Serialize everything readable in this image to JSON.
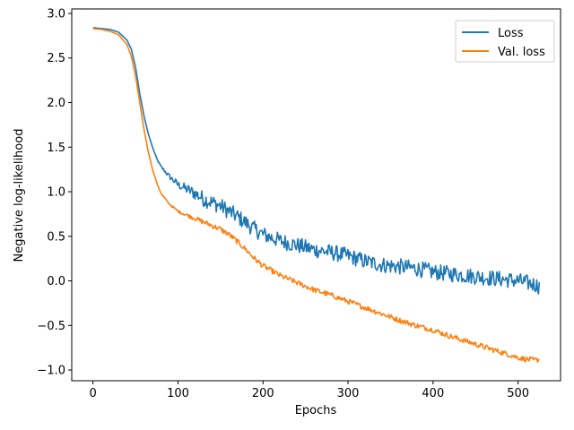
{
  "chart_data": {
    "type": "line",
    "xlabel": "Epochs",
    "ylabel": "Negative log-likelihood",
    "xlim": [
      -25,
      550
    ],
    "ylim": [
      -1.12,
      3.05
    ],
    "xticks": [
      "0",
      "100",
      "200",
      "300",
      "400",
      "500"
    ],
    "xtick_values": [
      0,
      100,
      200,
      300,
      400,
      500
    ],
    "yticks": [
      "3.0",
      "2.5",
      "2.0",
      "1.5",
      "1.0",
      "0.5",
      "0.0",
      "−0.5",
      "−1.0"
    ],
    "ytick_values": [
      3.0,
      2.5,
      2.0,
      1.5,
      1.0,
      0.5,
      0.0,
      -0.5,
      -1.0
    ],
    "grid": false,
    "legend_position": "top-right",
    "series": [
      {
        "name": "Loss",
        "color": "#1f77b4",
        "x": [
          0,
          10,
          20,
          30,
          40,
          45,
          50,
          55,
          60,
          65,
          70,
          75,
          80,
          90,
          100,
          110,
          120,
          130,
          140,
          150,
          160,
          170,
          180,
          190,
          200,
          220,
          240,
          260,
          280,
          300,
          320,
          340,
          360,
          380,
          400,
          420,
          440,
          460,
          480,
          500,
          510,
          520,
          525
        ],
        "y": [
          2.84,
          2.83,
          2.82,
          2.79,
          2.7,
          2.6,
          2.4,
          2.1,
          1.85,
          1.65,
          1.5,
          1.37,
          1.28,
          1.17,
          1.08,
          1.03,
          0.98,
          0.92,
          0.88,
          0.84,
          0.78,
          0.72,
          0.65,
          0.58,
          0.52,
          0.45,
          0.4,
          0.35,
          0.32,
          0.28,
          0.22,
          0.18,
          0.16,
          0.14,
          0.1,
          0.08,
          0.06,
          0.04,
          0.02,
          0.0,
          -0.02,
          -0.04,
          -0.06
        ]
      },
      {
        "name": "Val. loss",
        "color": "#ff7f0e",
        "x": [
          0,
          10,
          20,
          30,
          40,
          45,
          50,
          55,
          60,
          65,
          70,
          75,
          80,
          90,
          100,
          110,
          120,
          130,
          140,
          150,
          160,
          170,
          180,
          190,
          200,
          220,
          240,
          260,
          280,
          300,
          320,
          340,
          360,
          380,
          400,
          420,
          440,
          460,
          480,
          500,
          510,
          520,
          525
        ],
        "y": [
          2.83,
          2.82,
          2.8,
          2.76,
          2.65,
          2.52,
          2.3,
          2.0,
          1.7,
          1.45,
          1.25,
          1.1,
          0.98,
          0.86,
          0.78,
          0.74,
          0.7,
          0.66,
          0.62,
          0.58,
          0.52,
          0.44,
          0.35,
          0.25,
          0.17,
          0.06,
          -0.02,
          -0.1,
          -0.16,
          -0.23,
          -0.3,
          -0.37,
          -0.44,
          -0.5,
          -0.55,
          -0.62,
          -0.68,
          -0.74,
          -0.8,
          -0.86,
          -0.88,
          -0.89,
          -0.88
        ]
      }
    ]
  }
}
